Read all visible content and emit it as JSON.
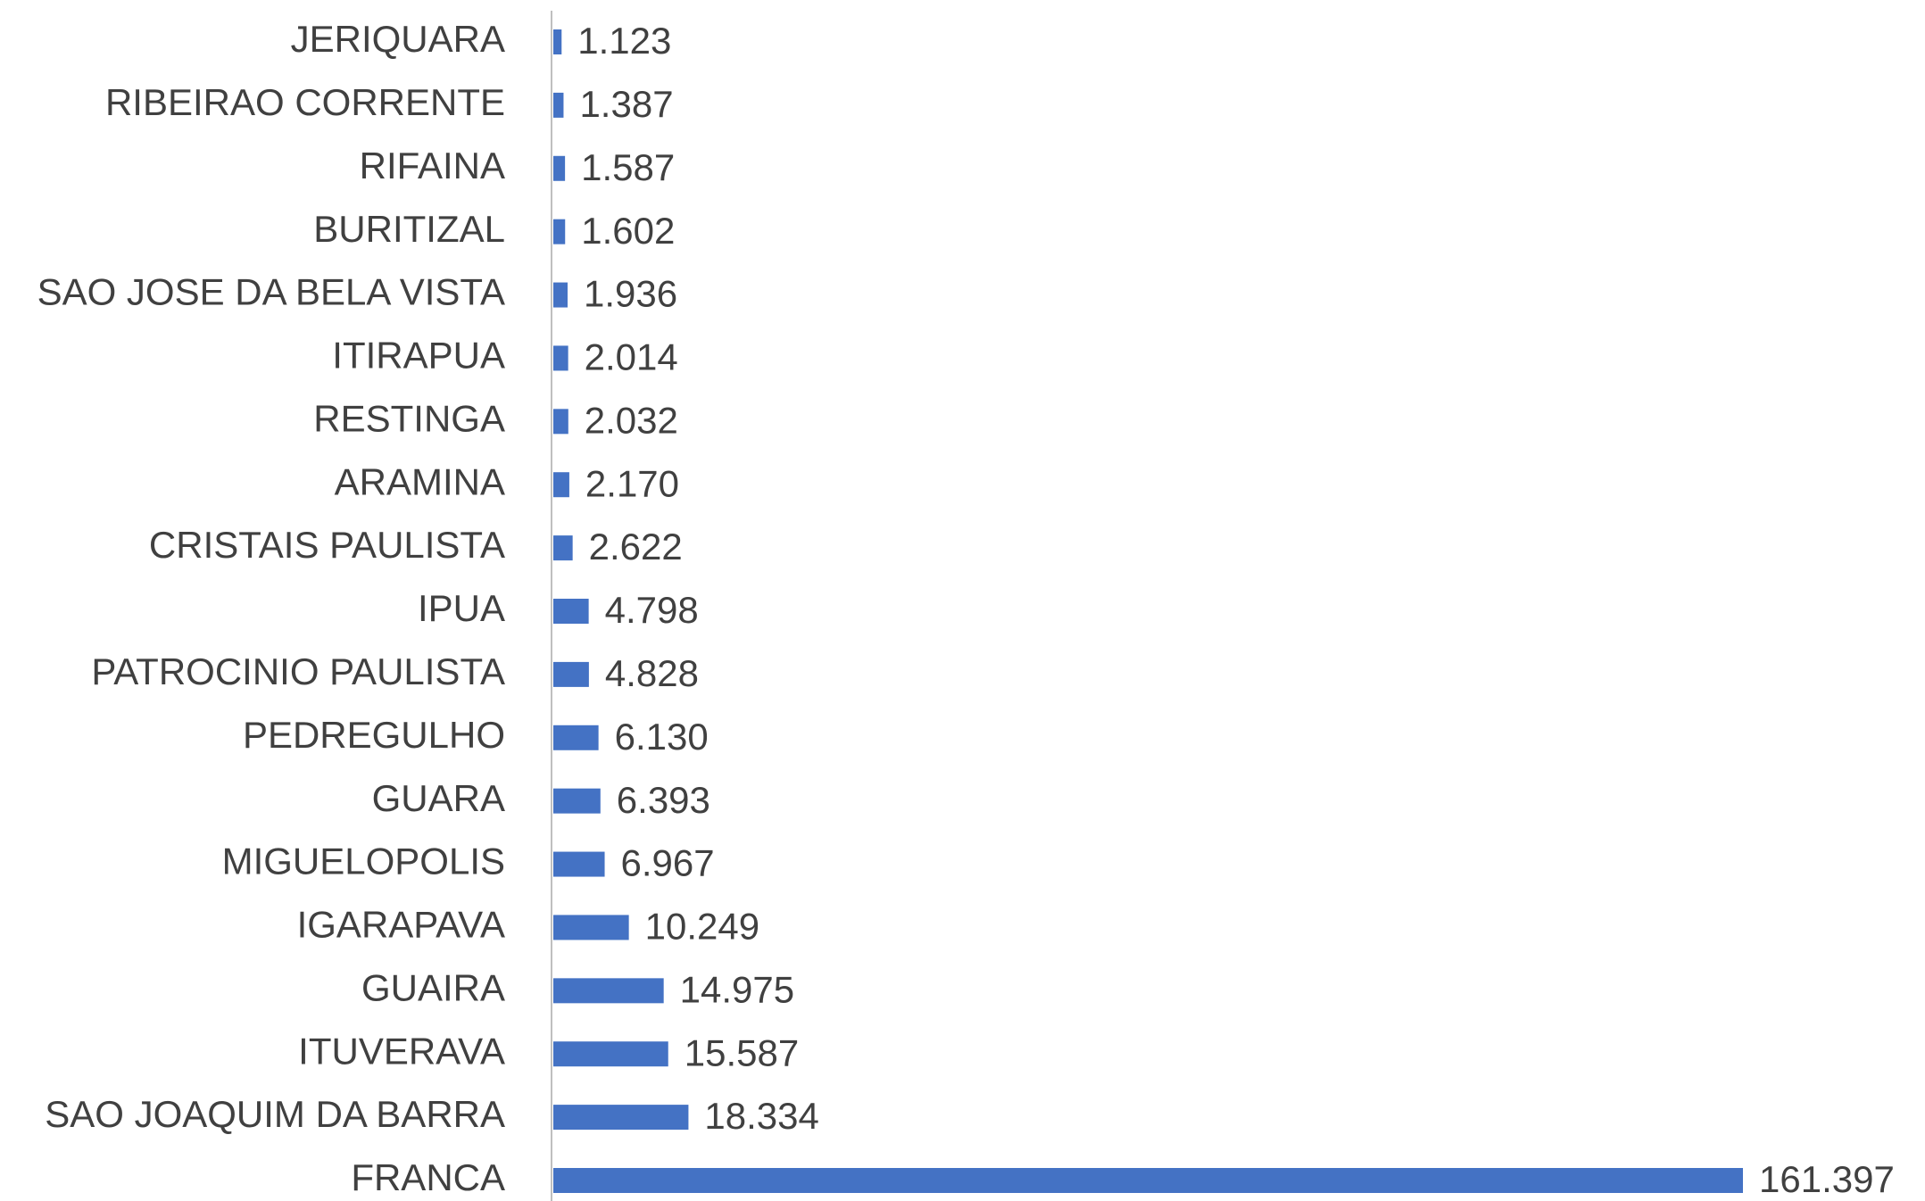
{
  "chart_data": {
    "type": "bar",
    "orientation": "horizontal",
    "color": "#4472c4",
    "categories": [
      "JERIQUARA",
      "RIBEIRAO CORRENTE",
      "RIFAINA",
      "BURITIZAL",
      "SAO JOSE DA BELA VISTA",
      "ITIRAPUA",
      "RESTINGA",
      "ARAMINA",
      "CRISTAIS PAULISTA",
      "IPUA",
      "PATROCINIO PAULISTA",
      "PEDREGULHO",
      "GUARA",
      "MIGUELOPOLIS",
      "IGARAPAVA",
      "GUAIRA",
      "ITUVERAVA",
      "SAO JOAQUIM DA BARRA",
      "FRANCA"
    ],
    "values": [
      1123,
      1387,
      1587,
      1602,
      1936,
      2014,
      2032,
      2170,
      2622,
      4798,
      4828,
      6130,
      6393,
      6967,
      10249,
      14975,
      15587,
      18334,
      161397
    ],
    "value_labels": [
      "1.123",
      "1.387",
      "1.587",
      "1.602",
      "1.936",
      "2.014",
      "2.032",
      "2.170",
      "2.622",
      "4.798",
      "4.828",
      "6.130",
      "6.393",
      "6.967",
      "10.249",
      "14.975",
      "15.587",
      "18.334",
      "161.397"
    ]
  }
}
